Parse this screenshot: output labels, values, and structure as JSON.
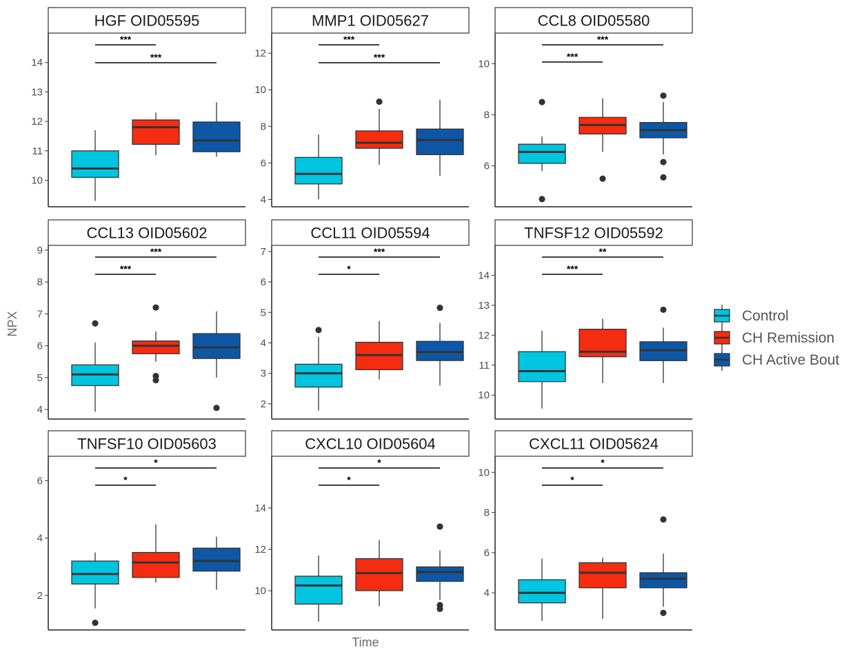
{
  "colors": {
    "Control": "#00c5e0",
    "CH Remission": "#f52c0f",
    "CH Active Bout": "#0d57a6"
  },
  "axis": {
    "xlabel": "Time",
    "ylabel": "NPX"
  },
  "legend": {
    "items": [
      "Control",
      "CH Remission",
      "CH Active Bout"
    ],
    "position": "right"
  },
  "chart_data": [
    {
      "type": "box",
      "title": "HGF OID05595",
      "ylim": [
        9.1,
        15.0
      ],
      "yticks": [
        10,
        11,
        12,
        13,
        14
      ],
      "boxes": [
        {
          "group": "Control",
          "whisker_low": 9.3,
          "q1": 10.1,
          "median": 10.4,
          "q3": 11.0,
          "whisker_high": 11.7,
          "outliers": []
        },
        {
          "group": "CH Remission",
          "whisker_low": 10.85,
          "q1": 11.22,
          "median": 11.8,
          "q3": 12.05,
          "whisker_high": 12.3,
          "outliers": []
        },
        {
          "group": "CH Active Bout",
          "whisker_low": 10.8,
          "q1": 10.97,
          "median": 11.35,
          "q3": 11.98,
          "whisker_high": 12.65,
          "outliers": []
        }
      ],
      "significance": [
        {
          "from": "Control",
          "to": "CH Remission",
          "label": "***"
        },
        {
          "from": "Control",
          "to": "CH Active Bout",
          "label": "***"
        }
      ]
    },
    {
      "type": "box",
      "title": "MMP1 OID05627",
      "ylim": [
        3.6,
        13.1
      ],
      "yticks": [
        4,
        6,
        8,
        10,
        12
      ],
      "boxes": [
        {
          "group": "Control",
          "whisker_low": 4.0,
          "q1": 4.85,
          "median": 5.4,
          "q3": 6.3,
          "whisker_high": 7.55,
          "outliers": []
        },
        {
          "group": "CH Remission",
          "whisker_low": 5.9,
          "q1": 6.8,
          "median": 7.1,
          "q3": 7.75,
          "whisker_high": 8.95,
          "outliers": [
            9.35
          ]
        },
        {
          "group": "CH Active Bout",
          "whisker_low": 5.3,
          "q1": 6.45,
          "median": 7.25,
          "q3": 7.85,
          "whisker_high": 9.45,
          "outliers": []
        }
      ],
      "significance": [
        {
          "from": "Control",
          "to": "CH Remission",
          "label": "***"
        },
        {
          "from": "Control",
          "to": "CH Active Bout",
          "label": "***"
        }
      ]
    },
    {
      "type": "box",
      "title": "CCL8 OID05580",
      "ylim": [
        4.4,
        11.2
      ],
      "yticks": [
        6,
        8,
        10
      ],
      "boxes": [
        {
          "group": "Control",
          "whisker_low": 5.8,
          "q1": 6.1,
          "median": 6.55,
          "q3": 6.85,
          "whisker_high": 7.15,
          "outliers": [
            8.5,
            4.7
          ]
        },
        {
          "group": "CH Remission",
          "whisker_low": 6.55,
          "q1": 7.25,
          "median": 7.6,
          "q3": 7.9,
          "whisker_high": 8.65,
          "outliers": [
            5.5
          ]
        },
        {
          "group": "CH Active Bout",
          "whisker_low": 6.45,
          "q1": 7.1,
          "median": 7.4,
          "q3": 7.7,
          "whisker_high": 8.5,
          "outliers": [
            8.75,
            6.15,
            5.55
          ]
        }
      ],
      "significance": [
        {
          "from": "Control",
          "to": "CH Remission",
          "label": "***"
        },
        {
          "from": "Control",
          "to": "CH Active Bout",
          "label": "***"
        }
      ]
    },
    {
      "type": "box",
      "title": "CCL13 OID05602",
      "ylim": [
        3.7,
        9.15
      ],
      "yticks": [
        4,
        5,
        6,
        7,
        8,
        9
      ],
      "boxes": [
        {
          "group": "Control",
          "whisker_low": 3.93,
          "q1": 4.75,
          "median": 5.1,
          "q3": 5.4,
          "whisker_high": 6.1,
          "outliers": [
            6.7
          ]
        },
        {
          "group": "CH Remission",
          "whisker_low": 5.5,
          "q1": 5.75,
          "median": 6.0,
          "q3": 6.15,
          "whisker_high": 6.45,
          "outliers": [
            7.2,
            5.05,
            4.92
          ]
        },
        {
          "group": "CH Active Bout",
          "whisker_low": 5.0,
          "q1": 5.6,
          "median": 5.95,
          "q3": 6.38,
          "whisker_high": 7.08,
          "outliers": [
            4.05
          ]
        }
      ],
      "significance": [
        {
          "from": "Control",
          "to": "CH Remission",
          "label": "***"
        },
        {
          "from": "Control",
          "to": "CH Active Bout",
          "label": "***"
        }
      ]
    },
    {
      "type": "box",
      "title": "CCL11 OID05594",
      "ylim": [
        1.5,
        7.2
      ],
      "yticks": [
        2,
        3,
        4,
        5,
        6,
        7
      ],
      "boxes": [
        {
          "group": "Control",
          "whisker_low": 1.78,
          "q1": 2.55,
          "median": 3.0,
          "q3": 3.3,
          "whisker_high": 4.2,
          "outliers": [
            4.42
          ]
        },
        {
          "group": "CH Remission",
          "whisker_low": 2.8,
          "q1": 3.12,
          "median": 3.6,
          "q3": 4.02,
          "whisker_high": 4.72,
          "outliers": []
        },
        {
          "group": "CH Active Bout",
          "whisker_low": 2.6,
          "q1": 3.42,
          "median": 3.7,
          "q3": 4.05,
          "whisker_high": 4.65,
          "outliers": [
            5.15
          ]
        }
      ],
      "significance": [
        {
          "from": "Control",
          "to": "CH Remission",
          "label": "*"
        },
        {
          "from": "Control",
          "to": "CH Active Bout",
          "label": "***"
        }
      ]
    },
    {
      "type": "box",
      "title": "TNFSF12 OID05592",
      "ylim": [
        9.2,
        15.0
      ],
      "yticks": [
        10,
        11,
        12,
        13,
        14
      ],
      "boxes": [
        {
          "group": "Control",
          "whisker_low": 9.55,
          "q1": 10.45,
          "median": 10.8,
          "q3": 11.45,
          "whisker_high": 12.15,
          "outliers": []
        },
        {
          "group": "CH Remission",
          "whisker_low": 10.4,
          "q1": 11.28,
          "median": 11.45,
          "q3": 12.2,
          "whisker_high": 12.55,
          "outliers": []
        },
        {
          "group": "CH Active Bout",
          "whisker_low": 10.4,
          "q1": 11.15,
          "median": 11.5,
          "q3": 11.78,
          "whisker_high": 12.25,
          "outliers": [
            12.85
          ]
        }
      ],
      "significance": [
        {
          "from": "Control",
          "to": "CH Remission",
          "label": "***"
        },
        {
          "from": "Control",
          "to": "CH Active Bout",
          "label": "**"
        }
      ]
    },
    {
      "type": "box",
      "title": "TNFSF10 OID05603",
      "ylim": [
        0.8,
        6.85
      ],
      "yticks": [
        2,
        4,
        6
      ],
      "boxes": [
        {
          "group": "Control",
          "whisker_low": 1.55,
          "q1": 2.4,
          "median": 2.75,
          "q3": 3.2,
          "whisker_high": 3.5,
          "outliers": [
            1.05
          ]
        },
        {
          "group": "CH Remission",
          "whisker_low": 2.45,
          "q1": 2.63,
          "median": 3.15,
          "q3": 3.5,
          "whisker_high": 4.48,
          "outliers": []
        },
        {
          "group": "CH Active Bout",
          "whisker_low": 2.2,
          "q1": 2.85,
          "median": 3.2,
          "q3": 3.65,
          "whisker_high": 4.05,
          "outliers": []
        }
      ],
      "significance": [
        {
          "from": "Control",
          "to": "CH Remission",
          "label": "*"
        },
        {
          "from": "Control",
          "to": "CH Active Bout",
          "label": "*"
        }
      ]
    },
    {
      "type": "box",
      "title": "CXCL10 OID05604",
      "ylim": [
        8.1,
        16.5
      ],
      "yticks": [
        10,
        12,
        14
      ],
      "boxes": [
        {
          "group": "Control",
          "whisker_low": 8.5,
          "q1": 9.35,
          "median": 10.25,
          "q3": 10.7,
          "whisker_high": 11.7,
          "outliers": []
        },
        {
          "group": "CH Remission",
          "whisker_low": 9.25,
          "q1": 10.0,
          "median": 10.85,
          "q3": 11.55,
          "whisker_high": 12.45,
          "outliers": []
        },
        {
          "group": "CH Active Bout",
          "whisker_low": 9.55,
          "q1": 10.45,
          "median": 10.9,
          "q3": 11.15,
          "whisker_high": 11.95,
          "outliers": [
            13.1,
            9.3,
            9.12
          ]
        }
      ],
      "significance": [
        {
          "from": "Control",
          "to": "CH Remission",
          "label": "*"
        },
        {
          "from": "Control",
          "to": "CH Active Bout",
          "label": "*"
        }
      ]
    },
    {
      "type": "box",
      "title": "CXCL11 OID05624",
      "ylim": [
        2.15,
        10.8
      ],
      "yticks": [
        4,
        6,
        8,
        10
      ],
      "boxes": [
        {
          "group": "Control",
          "whisker_low": 2.6,
          "q1": 3.5,
          "median": 4.0,
          "q3": 4.65,
          "whisker_high": 5.7,
          "outliers": []
        },
        {
          "group": "CH Remission",
          "whisker_low": 2.7,
          "q1": 4.25,
          "median": 5.0,
          "q3": 5.5,
          "whisker_high": 5.75,
          "outliers": []
        },
        {
          "group": "CH Active Bout",
          "whisker_low": 3.3,
          "q1": 4.25,
          "median": 4.7,
          "q3": 5.0,
          "whisker_high": 5.95,
          "outliers": [
            7.65,
            3.0
          ]
        }
      ],
      "significance": [
        {
          "from": "Control",
          "to": "CH Remission",
          "label": "*"
        },
        {
          "from": "Control",
          "to": "CH Active Bout",
          "label": "*"
        }
      ]
    }
  ]
}
